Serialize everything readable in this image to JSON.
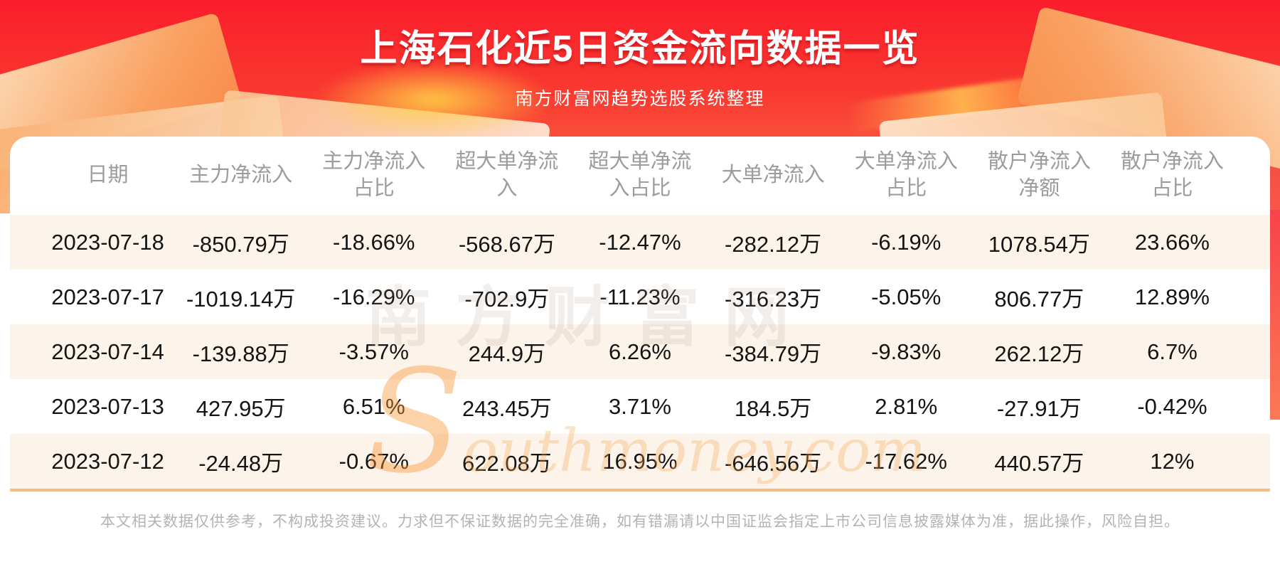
{
  "page": {
    "title": "上海石化近5日资金流向数据一览",
    "subtitle": "南方财富网趋势选股系统整理",
    "disclaimer": "本文相关数据仅供参考，不构成投资建议。力求但不保证数据的完全准确，如有错漏请以中国证监会指定上市公司信息披露媒体为准，据此操作，风险自担。",
    "watermark_cn": "南方财富网",
    "watermark_en": "Southmoney.com"
  },
  "colors": {
    "banner_red_top": "#fa1d2b",
    "banner_red_bottom": "#fb7550",
    "row_alt_bg": "#fcf3ea",
    "divider_orange": "#f3bd86",
    "header_text": "#9c9c9c",
    "data_text": "#141414",
    "disclaimer_text": "#b3b3b3"
  },
  "chart_data": {
    "type": "table",
    "title": "上海石化近5日资金流向数据一览",
    "subtitle": "南方财富网趋势选股系统整理",
    "columns": [
      "日期",
      "主力净流入",
      "主力净流入\n占比",
      "超大单净流\n入",
      "超大单净流\n入占比",
      "大单净流入",
      "大单净流入\n占比",
      "散户净流入\n净额",
      "散户净流入\n占比"
    ],
    "rows": [
      [
        "2023-07-18",
        "-850.79万",
        "-18.66%",
        "-568.67万",
        "-12.47%",
        "-282.12万",
        "-6.19%",
        "1078.54万",
        "23.66%"
      ],
      [
        "2023-07-17",
        "-1019.14万",
        "-16.29%",
        "-702.9万",
        "-11.23%",
        "-316.23万",
        "-5.05%",
        "806.77万",
        "12.89%"
      ],
      [
        "2023-07-14",
        "-139.88万",
        "-3.57%",
        "244.9万",
        "6.26%",
        "-384.79万",
        "-9.83%",
        "262.12万",
        "6.7%"
      ],
      [
        "2023-07-13",
        "427.95万",
        "6.51%",
        "243.45万",
        "3.71%",
        "184.5万",
        "2.81%",
        "-27.91万",
        "-0.42%"
      ],
      [
        "2023-07-12",
        "-24.48万",
        "-0.67%",
        "622.08万",
        "16.95%",
        "-646.56万",
        "-17.62%",
        "440.57万",
        "12%"
      ]
    ]
  }
}
